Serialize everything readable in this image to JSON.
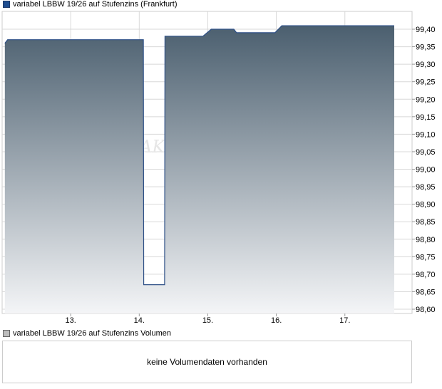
{
  "legend": {
    "price_label": "variabel LBBW 19/26 auf Stufenzins (Frankfurt)",
    "volume_label": "variabel LBBW 19/26 auf Stufenzins Volumen"
  },
  "volume": {
    "message": "keine Volumendaten vorhanden"
  },
  "watermark": "AK",
  "colors": {
    "line": "#2d4f86",
    "fill_top": "#4b5f6f",
    "fill_bottom": "#f4f5f7",
    "grid": "#d8d8d8"
  },
  "chart_data": {
    "type": "area",
    "title": "",
    "xlabel": "",
    "ylabel": "",
    "ylim": [
      98.6,
      99.45
    ],
    "y_ticks": [
      "99,40",
      "99,35",
      "99,30",
      "99,25",
      "99,20",
      "99,15",
      "99,10",
      "99,05",
      "99,00",
      "98,95",
      "98,90",
      "98,85",
      "98,80",
      "98,75",
      "98,70",
      "98,65",
      "98,60"
    ],
    "x_ticks": [
      "13.",
      "14.",
      "15.",
      "16.",
      "17."
    ],
    "grid": true,
    "legend_position": "top-left",
    "series": [
      {
        "name": "variabel LBBW 19/26 auf Stufenzins (Frankfurt)",
        "x": [
          12.04,
          12.08,
          14.06,
          14.065,
          14.37,
          14.375,
          14.93,
          15.05,
          15.38,
          15.42,
          15.98,
          16.08,
          17.72
        ],
        "values": [
          99.36,
          99.37,
          99.37,
          98.67,
          98.67,
          99.38,
          99.38,
          99.4,
          99.4,
          99.39,
          99.39,
          99.41,
          99.41
        ]
      }
    ]
  }
}
